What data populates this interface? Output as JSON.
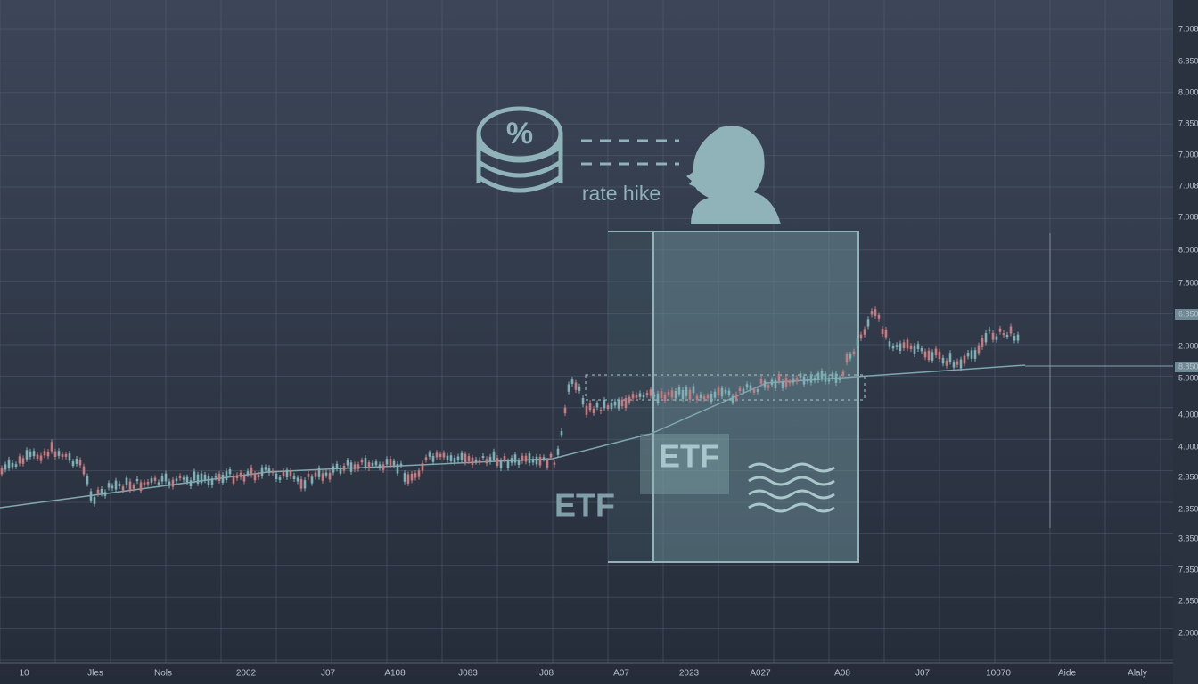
{
  "annotation": {
    "label": "rate hike"
  },
  "panel": {
    "etf_front": "ETF",
    "etf_back": "ETF"
  },
  "axis": {
    "right": [
      "7.008",
      "6.850",
      "8.000",
      "7.850",
      "7.000",
      "7.008",
      "7.008",
      "8.000",
      "7.800",
      "6.850",
      "2.000",
      "8.850",
      "5.000",
      "4.000",
      "4.000",
      "2.850",
      "2.850",
      "3.850",
      "7.850",
      "2.850",
      "2.000"
    ],
    "bottom": [
      "10",
      "Jles",
      "Nols",
      "2002",
      "J07",
      "A108",
      "J083",
      "J08",
      "A07",
      "2023",
      "A027",
      "A08",
      "J07",
      "10070",
      "Aide",
      "Alaly"
    ]
  }
}
